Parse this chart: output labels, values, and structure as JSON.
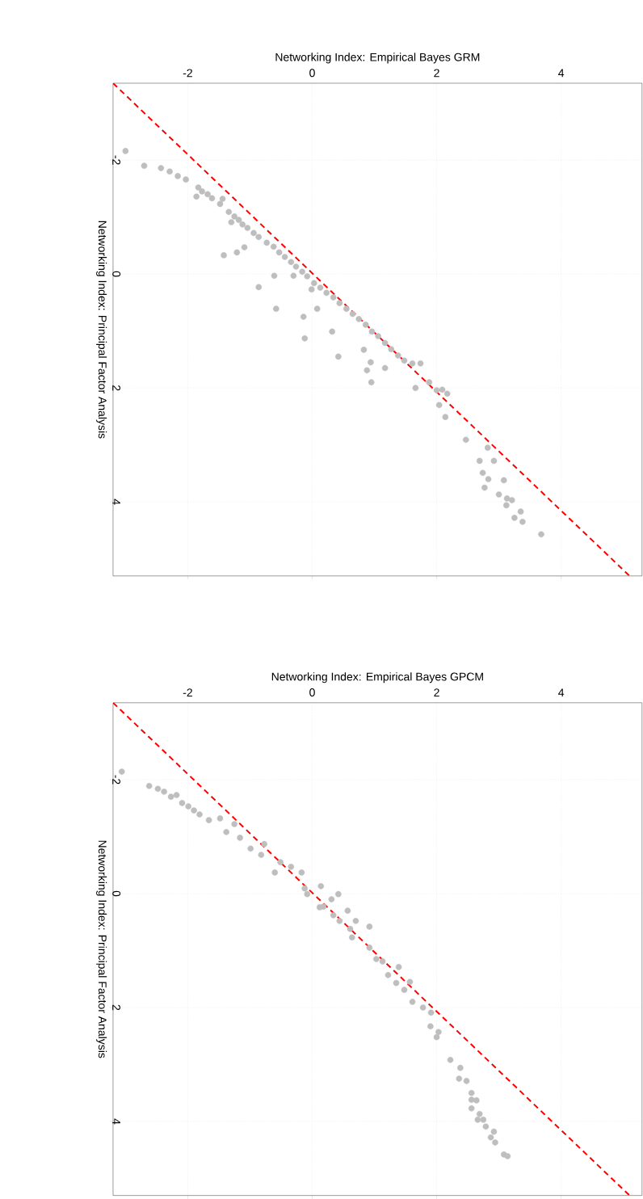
{
  "chart_data": [
    {
      "type": "scatter",
      "xlabel": "Networking Index: Empirical Bayes GRM",
      "ylabel": "Networking Index: Principal Factor Analysis",
      "xlim": [
        -3.2,
        5.3
      ],
      "ylim": [
        5.3,
        -3.35
      ],
      "xticks": [
        -2,
        0,
        2,
        4
      ],
      "yticks": [
        -2,
        0,
        2,
        4
      ],
      "grid": true,
      "series": [
        {
          "type": "scatter",
          "color": "#bebebe",
          "marker": "circle",
          "x": [
            -3.0,
            -2.7,
            -2.43,
            -2.29,
            -2.16,
            -2.03,
            -1.86,
            -1.83,
            -1.77,
            -1.68,
            -1.61,
            -1.48,
            -1.44,
            -1.34,
            -1.25,
            -1.3,
            -1.18,
            -1.12,
            -1.04,
            -0.94,
            -0.86,
            -0.73,
            -0.62,
            -0.53,
            -0.44,
            -0.34,
            -0.26,
            -0.16,
            -0.08,
            0.03,
            0.13,
            0.23,
            0.34,
            0.44,
            0.55,
            0.65,
            0.75,
            0.86,
            0.96,
            1.06,
            1.17,
            1.27,
            1.38,
            1.48,
            1.61,
            1.74,
            -1.42,
            -1.21,
            -1.09,
            -0.86,
            -0.58,
            -0.61,
            -0.3,
            -0.14,
            -0.12,
            -0.01,
            0.08,
            0.32,
            0.42,
            0.83,
            0.94,
            0.88,
            0.95,
            1.66,
            1.88,
            2.0,
            2.17,
            2.04,
            2.14,
            1.17,
            2.09,
            2.47,
            2.82,
            2.69,
            2.92,
            2.74,
            2.83,
            3.08,
            2.77,
            3.0,
            3.13,
            3.21,
            3.12,
            3.35,
            3.25,
            3.38,
            3.68
          ],
          "values": [
            -2.16,
            -1.9,
            -1.86,
            -1.8,
            -1.72,
            -1.66,
            -1.36,
            -1.52,
            -1.45,
            -1.4,
            -1.33,
            -1.23,
            -1.32,
            -1.09,
            -1.01,
            -0.91,
            -0.95,
            -0.87,
            -0.81,
            -0.72,
            -0.65,
            -0.55,
            -0.48,
            -0.38,
            -0.3,
            -0.21,
            -0.13,
            -0.04,
            0.04,
            0.16,
            0.24,
            0.33,
            0.41,
            0.51,
            0.61,
            0.7,
            0.79,
            0.89,
            1.01,
            1.09,
            1.21,
            1.32,
            1.43,
            1.52,
            1.57,
            1.57,
            -0.33,
            -0.38,
            -0.47,
            0.23,
            0.61,
            0.03,
            0.03,
            0.75,
            1.13,
            0.27,
            0.61,
            1.01,
            1.45,
            1.33,
            1.55,
            1.69,
            1.9,
            2.0,
            1.9,
            2.04,
            2.1,
            2.3,
            2.51,
            1.65,
            2.03,
            2.91,
            3.05,
            3.28,
            3.28,
            3.49,
            3.6,
            3.62,
            3.75,
            3.87,
            3.94,
            3.97,
            4.06,
            4.17,
            4.28,
            4.35,
            4.57
          ]
        },
        {
          "type": "line",
          "color": "#ff0000",
          "line_style": "dashed",
          "marker": "none",
          "x": [
            -3.2,
            5.1
          ],
          "values": [
            -3.35,
            5.3
          ]
        }
      ]
    },
    {
      "type": "scatter",
      "xlabel": "Networking Index: Empirical Bayes GPCM",
      "ylabel": "Networking Index: Principal Factor Analysis",
      "xlim": [
        -3.2,
        5.3
      ],
      "ylim": [
        5.3,
        -3.35
      ],
      "xticks": [
        -2,
        0,
        2,
        4
      ],
      "yticks": [
        -2,
        0,
        2,
        4
      ],
      "grid": true,
      "series": [
        {
          "type": "scatter",
          "color": "#bebebe",
          "marker": "circle",
          "x": [
            -3.06,
            -2.62,
            -2.48,
            -2.38,
            -2.27,
            -2.18,
            -2.09,
            -1.99,
            -1.9,
            -1.81,
            -1.66,
            -1.48,
            -1.38,
            -1.25,
            -1.16,
            -0.99,
            -0.82,
            -0.6,
            -0.77,
            -0.51,
            -0.34,
            -0.17,
            -0.12,
            -0.08,
            0.14,
            0.12,
            0.31,
            0.34,
            0.57,
            0.61,
            0.7,
            0.92,
            1.03,
            1.35,
            1.48,
            1.57,
            1.61,
            1.22,
            1.39,
            1.13,
            0.92,
            0.64,
            0.44,
            0.42,
            0.18,
            1.78,
            1.91,
            1.9,
            2.03,
            2.0,
            2.22,
            2.38,
            2.36,
            2.48,
            2.56,
            2.56,
            2.64,
            2.56,
            2.69,
            2.66,
            2.75,
            2.79,
            2.92,
            2.87,
            2.94,
            3.08,
            3.14
          ],
          "values": [
            -2.14,
            -1.89,
            -1.84,
            -1.79,
            -1.7,
            -1.73,
            -1.59,
            -1.53,
            -1.46,
            -1.39,
            -1.29,
            -1.32,
            -1.08,
            -1.22,
            -0.98,
            -0.79,
            -0.68,
            -0.37,
            -0.87,
            -0.55,
            -0.47,
            -0.37,
            -0.09,
            0.01,
            -0.13,
            0.24,
            0.1,
            0.38,
            0.3,
            0.62,
            0.48,
            0.58,
            1.15,
            1.57,
            1.69,
            1.55,
            1.9,
            1.43,
            1.29,
            1.19,
            0.95,
            0.77,
            0.48,
            0.01,
            0.23,
            2.0,
            2.09,
            2.33,
            2.43,
            2.52,
            2.92,
            3.06,
            3.25,
            3.29,
            3.5,
            3.62,
            3.63,
            3.77,
            3.87,
            3.97,
            3.97,
            4.09,
            4.18,
            4.28,
            4.37,
            4.58,
            4.61
          ]
        },
        {
          "type": "line",
          "color": "#ff0000",
          "line_style": "dashed",
          "marker": "none",
          "x": [
            -3.2,
            5.1
          ],
          "values": [
            -3.35,
            5.3
          ]
        }
      ]
    }
  ]
}
